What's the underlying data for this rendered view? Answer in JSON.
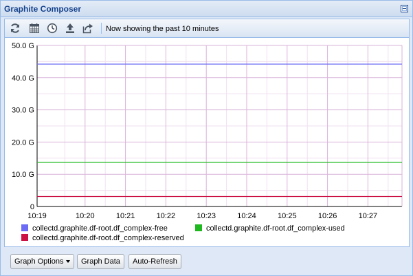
{
  "window": {
    "title": "Graphite Composer"
  },
  "toolbar": {
    "buttons": [
      {
        "icon": "refresh-icon"
      },
      {
        "icon": "calendar-icon"
      },
      {
        "icon": "clock-icon"
      },
      {
        "icon": "upload-icon"
      },
      {
        "icon": "share-icon"
      }
    ],
    "status": "Now showing the past 10 minutes"
  },
  "chart_data": {
    "type": "line",
    "title": "",
    "xlabel": "",
    "ylabel": "",
    "x_ticks": [
      "10:19",
      "10:20",
      "10:21",
      "10:22",
      "10:23",
      "10:24",
      "10:25",
      "10:26",
      "10:27"
    ],
    "y_ticks": [
      "0",
      "10.0 G",
      "20.0 G",
      "30.0 G",
      "40.0 G",
      "50.0 G"
    ],
    "ylim": [
      0,
      50
    ],
    "y_unit": "G",
    "grid": true,
    "legend_position": "bottom",
    "series": [
      {
        "name": "collectd.graphite.df-root.df_complex-free",
        "color": "#6b6bf5",
        "value": 44.2
      },
      {
        "name": "collectd.graphite.df-root.df_complex-used",
        "color": "#1fb81f",
        "value": 13.7
      },
      {
        "name": "collectd.graphite.df-root.df_complex-reserved",
        "color": "#cc1144",
        "value": 3.1
      }
    ],
    "colors": {
      "grid_major": "#d9b3d9",
      "grid_minor": "#efe0ef",
      "axis": "#000000",
      "background": "#ffffff"
    }
  },
  "bottom": {
    "graph_options": "Graph Options",
    "graph_data": "Graph Data",
    "auto_refresh": "Auto-Refresh"
  }
}
